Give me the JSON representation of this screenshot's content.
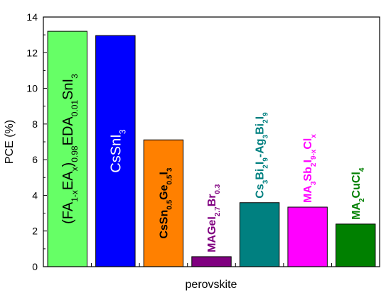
{
  "chart_data": {
    "type": "bar",
    "xlabel": "perovskite",
    "ylabel": "PCE (%)",
    "ylim": [
      0,
      14
    ],
    "yticks": [
      "0",
      "2",
      "4",
      "6",
      "8",
      "10",
      "12",
      "14"
    ],
    "grid": false,
    "bars": [
      {
        "value": 13.2,
        "color": "#66ff66",
        "label_color": "#000000",
        "label": [
          {
            "t": "(FA"
          },
          {
            "t": "1-x",
            "s": "sub"
          },
          {
            "t": "EA"
          },
          {
            "t": "x",
            "s": "sub"
          },
          {
            "t": ")"
          },
          {
            "t": "0.98",
            "s": "sub"
          },
          {
            "t": "EDA"
          },
          {
            "t": "0.01",
            "s": "sub"
          },
          {
            "t": "SnI"
          },
          {
            "t": "3",
            "s": "sub"
          }
        ]
      },
      {
        "value": 12.96,
        "color": "#0000ff",
        "label_color": "#ffffff",
        "label": [
          {
            "t": "CsSnI"
          },
          {
            "t": "3",
            "s": "sub"
          }
        ]
      },
      {
        "value": 7.11,
        "color": "#ff8000",
        "label_color": "#000000",
        "label": [
          {
            "t": "CsSn"
          },
          {
            "t": "0.5",
            "s": "sub"
          },
          {
            "t": "Ge"
          },
          {
            "t": "0.5",
            "s": "sub"
          },
          {
            "t": "I"
          },
          {
            "t": "3",
            "s": "sub"
          }
        ]
      },
      {
        "value": 0.56,
        "color": "#800080",
        "label_color": "#800080",
        "label": [
          {
            "t": "MAGeI"
          },
          {
            "t": "2.7",
            "s": "sub"
          },
          {
            "t": "Br"
          },
          {
            "t": "0.3",
            "s": "sub"
          }
        ]
      },
      {
        "value": 3.59,
        "color": "#008080",
        "label_color": "#008080",
        "label": [
          {
            "t": "Cs"
          },
          {
            "t": "3",
            "s": "sub"
          },
          {
            "t": "Bi"
          },
          {
            "t": "2",
            "s": "sub"
          },
          {
            "t": "I"
          },
          {
            "t": "9",
            "s": "sub"
          },
          {
            "t": "-Ag"
          },
          {
            "t": "3",
            "s": "sub"
          },
          {
            "t": "Bi"
          },
          {
            "t": "2",
            "s": "sub"
          },
          {
            "t": "I"
          },
          {
            "t": "9",
            "s": "sub"
          }
        ]
      },
      {
        "value": 3.34,
        "color": "#ff00ff",
        "label_color": "#ff00ff",
        "label": [
          {
            "t": "MA"
          },
          {
            "t": "3",
            "s": "sub"
          },
          {
            "t": "Sb"
          },
          {
            "t": "2",
            "s": "sub"
          },
          {
            "t": "I"
          },
          {
            "t": "9-x",
            "s": "sub"
          },
          {
            "t": "Cl"
          },
          {
            "t": "x",
            "s": "sub"
          }
        ]
      },
      {
        "value": 2.39,
        "color": "#008000",
        "label_color": "#008000",
        "label": [
          {
            "t": "MA"
          },
          {
            "t": "2",
            "s": "sub"
          },
          {
            "t": "CuCl"
          },
          {
            "t": "4",
            "s": "sub"
          }
        ]
      }
    ]
  }
}
